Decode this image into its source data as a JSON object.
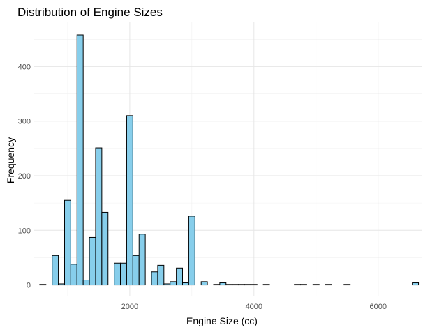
{
  "chart_data": {
    "type": "bar",
    "subtype": "histogram",
    "title": "Distribution of Engine Sizes",
    "xlabel": "Engine Size (cc)",
    "ylabel": "Frequency",
    "xlim": [
      450,
      6700
    ],
    "ylim": [
      -21,
      481
    ],
    "x_ticks": [
      2000,
      4000,
      6000
    ],
    "y_ticks": [
      0,
      100,
      200,
      300,
      400
    ],
    "grid": true,
    "bin_width": 100,
    "bar_fill": "#87ceeb",
    "bar_stroke": "#000000",
    "bins": [
      {
        "x": 600,
        "count": 1
      },
      {
        "x": 800,
        "count": 54
      },
      {
        "x": 900,
        "count": 2
      },
      {
        "x": 1000,
        "count": 155
      },
      {
        "x": 1100,
        "count": 38
      },
      {
        "x": 1200,
        "count": 458
      },
      {
        "x": 1300,
        "count": 9
      },
      {
        "x": 1400,
        "count": 87
      },
      {
        "x": 1500,
        "count": 251
      },
      {
        "x": 1600,
        "count": 133
      },
      {
        "x": 1800,
        "count": 40
      },
      {
        "x": 1900,
        "count": 40
      },
      {
        "x": 2000,
        "count": 310
      },
      {
        "x": 2100,
        "count": 54
      },
      {
        "x": 2200,
        "count": 93
      },
      {
        "x": 2400,
        "count": 24
      },
      {
        "x": 2500,
        "count": 36
      },
      {
        "x": 2600,
        "count": 2
      },
      {
        "x": 2700,
        "count": 6
      },
      {
        "x": 2800,
        "count": 31
      },
      {
        "x": 2900,
        "count": 4
      },
      {
        "x": 3000,
        "count": 126
      },
      {
        "x": 3200,
        "count": 6
      },
      {
        "x": 3400,
        "count": 1
      },
      {
        "x": 3500,
        "count": 4
      },
      {
        "x": 3600,
        "count": 1
      },
      {
        "x": 3700,
        "count": 1
      },
      {
        "x": 3800,
        "count": 1
      },
      {
        "x": 3900,
        "count": 1
      },
      {
        "x": 4000,
        "count": 1
      },
      {
        "x": 4200,
        "count": 1
      },
      {
        "x": 4700,
        "count": 1
      },
      {
        "x": 4800,
        "count": 1
      },
      {
        "x": 5000,
        "count": 1
      },
      {
        "x": 5200,
        "count": 1
      },
      {
        "x": 5500,
        "count": 1
      },
      {
        "x": 6600,
        "count": 4
      }
    ]
  }
}
